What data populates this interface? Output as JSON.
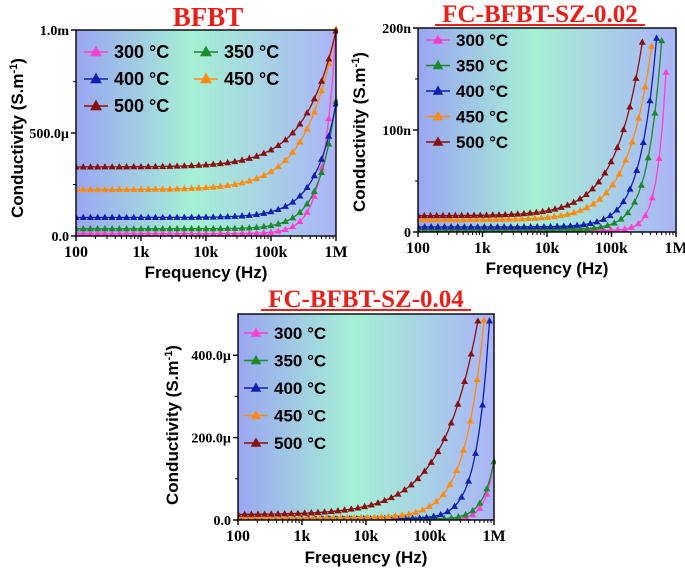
{
  "chart_data": [
    {
      "type": "line",
      "title": "BFBT",
      "title_underline": false,
      "xlabel": "Frequency (Hz)",
      "ylabel": "Conductivity (S.m-1)",
      "x_scale": "log",
      "xlim": [
        100,
        1000000
      ],
      "ylim": [
        0,
        0.001
      ],
      "x_ticks": [
        100,
        1000,
        10000,
        100000,
        1000000
      ],
      "x_tick_labels": [
        "100",
        "1k",
        "10k",
        "100k",
        "1M"
      ],
      "y_ticks": [
        0,
        0.0005,
        0.001
      ],
      "y_tick_labels": [
        "0.0",
        "500.0µ",
        "1.0m"
      ],
      "legend_columns": 2,
      "legend_position": "top-left",
      "series": [
        {
          "name": "300 °C",
          "color": "#ff3fd0",
          "base": 1.2e-05,
          "amp": 0.00098,
          "f0": 1000000,
          "p": 2.2
        },
        {
          "name": "350 °C",
          "color": "#1a8a2a",
          "base": 3.5e-05,
          "amp": 0.00062,
          "f0": 1000000,
          "p": 1.6
        },
        {
          "name": "400 °C",
          "color": "#1020b0",
          "base": 9e-05,
          "amp": 0.00055,
          "f0": 1000000,
          "p": 1.3
        },
        {
          "name": "450 °C",
          "color": "#ff8a10",
          "base": 0.000225,
          "amp": 0.00078,
          "f0": 1000000,
          "p": 0.95
        },
        {
          "name": "500 °C",
          "color": "#8a1010",
          "base": 0.000335,
          "amp": 0.00066,
          "f0": 1000000,
          "p": 0.9
        }
      ]
    },
    {
      "type": "line",
      "title": "FC-BFBT-SZ-0.02",
      "title_underline": true,
      "xlabel": "Frequency (Hz)",
      "ylabel": "Conductivity (S.m-1)",
      "x_scale": "log",
      "xlim": [
        100,
        1000000
      ],
      "ylim": [
        0,
        2e-07
      ],
      "x_ticks": [
        100,
        1000,
        10000,
        100000,
        1000000
      ],
      "x_tick_labels": [
        "100",
        "1k",
        "10k",
        "100k",
        "1M"
      ],
      "y_ticks": [
        0,
        1e-07,
        2e-07
      ],
      "y_tick_labels": [
        "0",
        "100n",
        "200n"
      ],
      "legend_columns": 1,
      "legend_position": "top-left",
      "series": [
        {
          "name": "300 °C",
          "color": "#ff3fd0",
          "base": 1.5e-09,
          "amp": 1.55e-07,
          "f0": 700000,
          "p": 3.2,
          "fmax": 700000
        },
        {
          "name": "350 °C",
          "color": "#1a8a2a",
          "base": 2.5e-09,
          "amp": 1.85e-07,
          "f0": 600000,
          "p": 2.0,
          "fmax": 600000
        },
        {
          "name": "400 °C",
          "color": "#1020b0",
          "base": 5e-09,
          "amp": 1.85e-07,
          "f0": 500000,
          "p": 1.7,
          "fmax": 500000
        },
        {
          "name": "450 °C",
          "color": "#ff8a10",
          "base": 1.2e-08,
          "amp": 1.7e-07,
          "f0": 420000,
          "p": 1.15,
          "fmax": 420000
        },
        {
          "name": "500 °C",
          "color": "#8a1010",
          "base": 1.6e-08,
          "amp": 1.7e-07,
          "f0": 300000,
          "p": 1.05,
          "fmax": 300000
        }
      ]
    },
    {
      "type": "line",
      "title": "FC-BFBT-SZ-0.04",
      "title_underline": true,
      "xlabel": "Frequency (Hz)",
      "ylabel": "Conductivity (S.m-1)",
      "x_scale": "log",
      "xlim": [
        100,
        1000000
      ],
      "ylim": [
        0,
        0.0005
      ],
      "x_ticks": [
        100,
        1000,
        10000,
        100000,
        1000000
      ],
      "x_tick_labels": [
        "100",
        "1k",
        "10k",
        "100k",
        "1M"
      ],
      "y_ticks": [
        0,
        0.0002,
        0.0004
      ],
      "y_tick_labels": [
        "0.0",
        "200.0µ",
        "400.0µ"
      ],
      "legend_columns": 1,
      "legend_position": "top-left",
      "series": [
        {
          "name": "300 °C",
          "color": "#ff3fd0",
          "base": 1e-06,
          "amp": 0.00014,
          "f0": 1000000,
          "p": 3.2
        },
        {
          "name": "350 °C",
          "color": "#1a8a2a",
          "base": 2e-06,
          "amp": 0.00014,
          "f0": 1000000,
          "p": 2.5
        },
        {
          "name": "400 °C",
          "color": "#1020b0",
          "base": 3e-06,
          "amp": 0.00048,
          "f0": 850000,
          "p": 2.2,
          "fmax": 850000
        },
        {
          "name": "450 °C",
          "color": "#ff8a10",
          "base": 5e-06,
          "amp": 0.00048,
          "f0": 700000,
          "p": 1.45,
          "fmax": 700000
        },
        {
          "name": "500 °C",
          "color": "#8a1010",
          "base": 1.3e-05,
          "amp": 0.00047,
          "f0": 560000,
          "p": 0.78,
          "fmax": 560000
        }
      ]
    }
  ]
}
